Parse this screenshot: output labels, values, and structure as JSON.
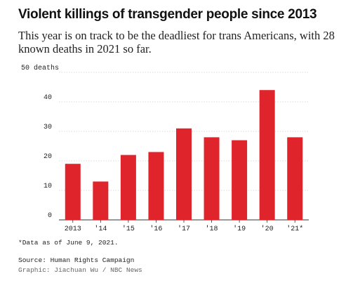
{
  "title": "Violent killings of transgender people since 2013",
  "subtitle": "This year is on track to be the deadliest for trans Americans, with 28 known deaths in 2021 so far.",
  "footnote": "*Data as of June 9, 2021.",
  "source": "Source: Human Rights Campaign",
  "credit": "Graphic: Jiachuan Wu / NBC News",
  "colors": {
    "bar": "#e0242b",
    "grid": "#d0d0d0",
    "axis": "#333333"
  },
  "chart_data": {
    "type": "bar",
    "title": "Violent killings of transgender people since 2013",
    "categories": [
      "2013",
      "'14",
      "'15",
      "'16",
      "'17",
      "'18",
      "'19",
      "'20",
      "'21*"
    ],
    "values": [
      19,
      13,
      22,
      23,
      31,
      28,
      27,
      44,
      28
    ],
    "ylim": [
      0,
      50
    ],
    "yticks": [
      0,
      10,
      20,
      30,
      40,
      50
    ],
    "ytick_labels": [
      "0",
      "10",
      "20",
      "30",
      "40",
      "50 deaths"
    ],
    "xlabel": "",
    "ylabel": "",
    "grid": true
  }
}
